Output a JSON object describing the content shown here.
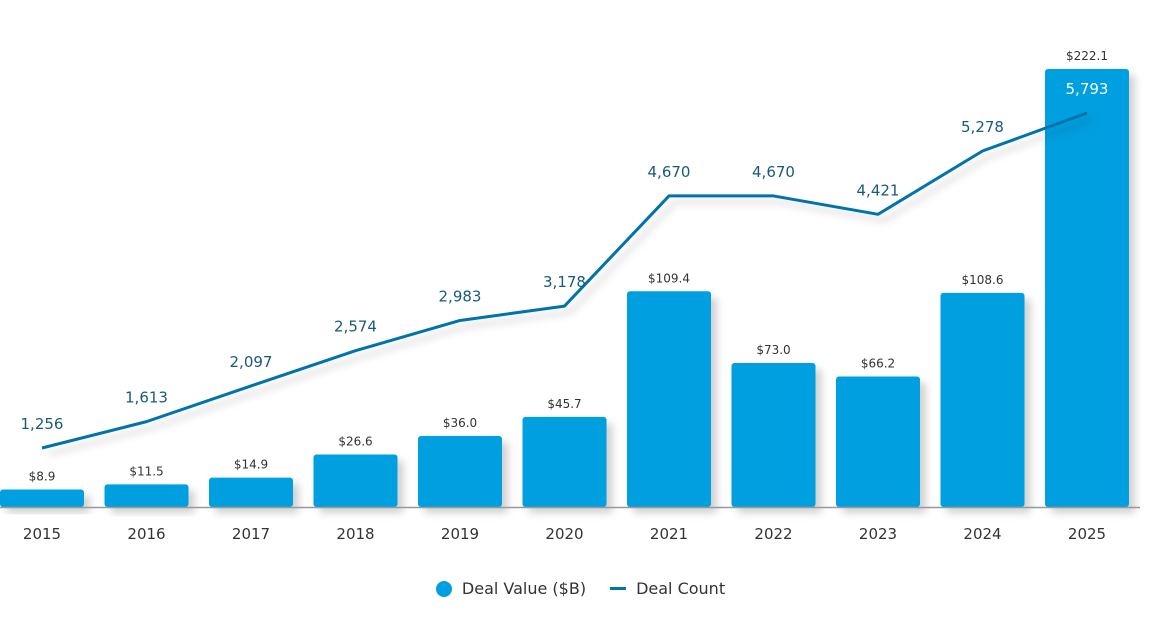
{
  "chart_data": {
    "type": "bar+line",
    "title": "",
    "categories": [
      "2015",
      "2016",
      "2017",
      "2018",
      "2019",
      "2020",
      "2021",
      "2022",
      "2023",
      "2024",
      "2025"
    ],
    "series": [
      {
        "name": "Deal Value ($B)",
        "type": "bar",
        "color": "#009fdf",
        "values": [
          8.9,
          11.5,
          14.9,
          26.6,
          36.0,
          45.7,
          109.4,
          73.0,
          66.2,
          108.6,
          222.1
        ],
        "labels": [
          "$8.9",
          "$11.5",
          "$14.9",
          "$26.6",
          "$36.0",
          "$45.7",
          "$109.4",
          "$73.0",
          "$66.2",
          "$108.6",
          "$222.1"
        ]
      },
      {
        "name": "Deal Count",
        "type": "line",
        "color": "#0073a8",
        "values": [
          1256,
          1613,
          2097,
          2574,
          2983,
          3178,
          4670,
          4670,
          4421,
          5278,
          5793
        ],
        "labels": [
          "1,256",
          "1,613",
          "2,097",
          "2,574",
          "2,983",
          "3,178",
          "4,670",
          "4,670",
          "4,421",
          "5,278",
          "5,793"
        ]
      }
    ],
    "bar_ylim": [
      0,
      222.1
    ],
    "line_ylim": [
      1256,
      5793
    ],
    "grid": false,
    "legend_placement": "bottom"
  },
  "legend": {
    "bar": "Deal Value ($B)",
    "line": "Deal Count"
  }
}
